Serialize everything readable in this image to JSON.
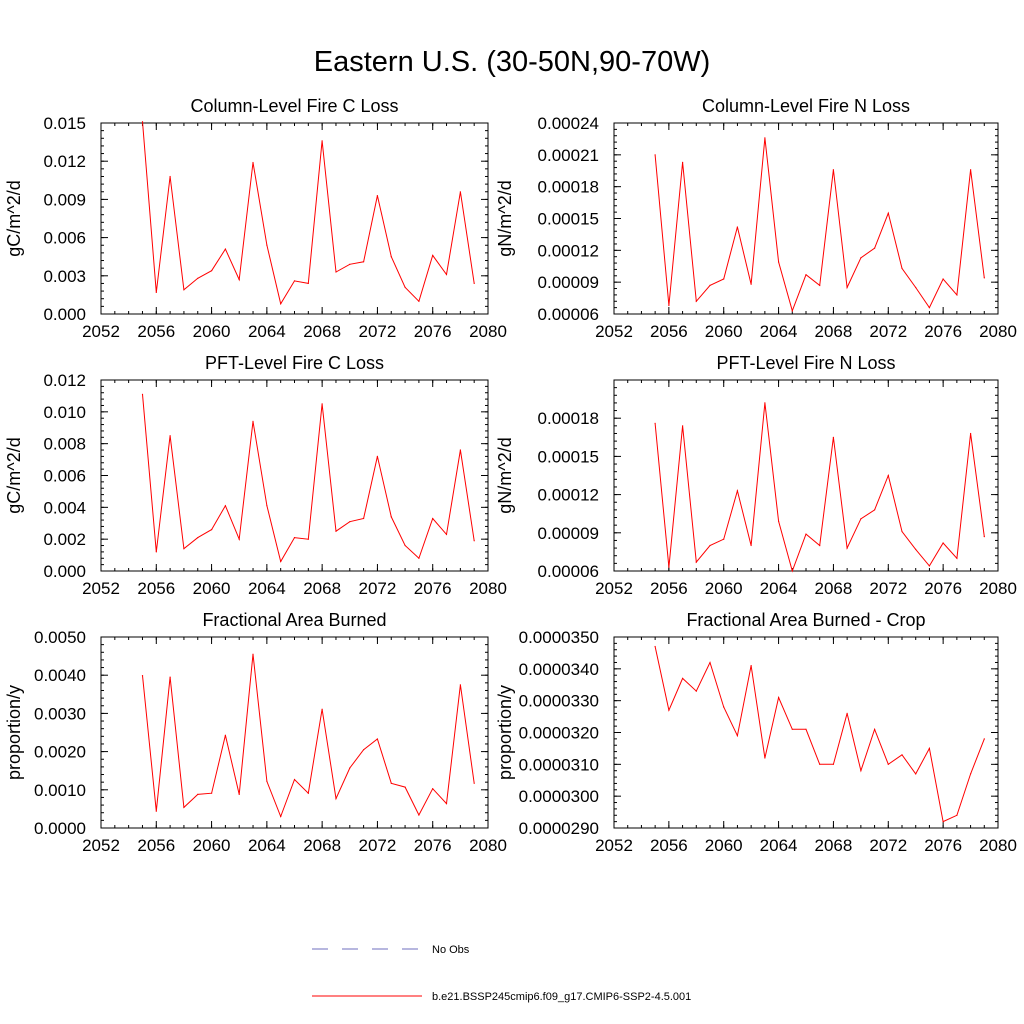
{
  "figure": {
    "title": "Eastern U.S. (30-50N,90-70W)"
  },
  "legend": {
    "items": [
      {
        "label": "No Obs",
        "color": "#6f6fbf",
        "dash": true
      },
      {
        "label": "b.e21.BSSP245cmip6.f09_g17.CMIP6-SSP2-4.5.001",
        "color": "#ff0000",
        "dash": false
      }
    ]
  },
  "chart_data": [
    {
      "type": "line",
      "title": "Column-Level Fire C Loss",
      "ylabel": "gC/m^2/d",
      "xlim": [
        2052,
        2080
      ],
      "x_ticks": [
        "2052",
        "2056",
        "2060",
        "2064",
        "2068",
        "2072",
        "2076",
        "2080"
      ],
      "ylim": [
        0.0,
        0.015
      ],
      "y_ticks": [
        "0.000",
        "0.003",
        "0.006",
        "0.009",
        "0.012",
        "0.015"
      ],
      "x": [
        2055,
        2056,
        2057,
        2058,
        2059,
        2060,
        2061,
        2062,
        2063,
        2064,
        2065,
        2066,
        2067,
        2068,
        2069,
        2070,
        2071,
        2072,
        2073,
        2074,
        2075,
        2076,
        2077,
        2078,
        2079
      ],
      "series": [
        {
          "color": "#ff0000",
          "values": [
            0.0151,
            0.0017,
            0.0108,
            0.0019,
            0.0028,
            0.0034,
            0.0051,
            0.0027,
            0.0119,
            0.0054,
            0.0008,
            0.0026,
            0.0024,
            0.0136,
            0.0033,
            0.0039,
            0.0041,
            0.0093,
            0.0045,
            0.0021,
            0.001,
            0.0046,
            0.0031,
            0.0096,
            0.0024
          ]
        }
      ]
    },
    {
      "type": "line",
      "title": "Column-Level Fire N Loss",
      "ylabel": "gN/m^2/d",
      "xlim": [
        2052,
        2080
      ],
      "x_ticks": [
        "2052",
        "2056",
        "2060",
        "2064",
        "2068",
        "2072",
        "2076",
        "2080"
      ],
      "ylim": [
        6e-05,
        0.00024
      ],
      "y_ticks": [
        "0.00006",
        "0.00009",
        "0.00012",
        "0.00015",
        "0.00018",
        "0.00021",
        "0.00024"
      ],
      "x": [
        2055,
        2056,
        2057,
        2058,
        2059,
        2060,
        2061,
        2062,
        2063,
        2064,
        2065,
        2066,
        2067,
        2068,
        2069,
        2070,
        2071,
        2072,
        2073,
        2074,
        2075,
        2076,
        2077,
        2078,
        2079
      ],
      "series": [
        {
          "color": "#ff0000",
          "values": [
            0.00021,
            6.8e-05,
            0.000203,
            7.2e-05,
            8.7e-05,
            9.3e-05,
            0.000142,
            8.8e-05,
            0.000226,
            0.000109,
            6.3e-05,
            9.7e-05,
            8.7e-05,
            0.000196,
            8.5e-05,
            0.000113,
            0.000122,
            0.000155,
            0.000103,
            8.5e-05,
            6.6e-05,
            9.3e-05,
            7.8e-05,
            0.000196,
            9.4e-05
          ]
        }
      ]
    },
    {
      "type": "line",
      "title": "PFT-Level Fire C Loss",
      "ylabel": "gC/m^2/d",
      "xlim": [
        2052,
        2080
      ],
      "x_ticks": [
        "2052",
        "2056",
        "2060",
        "2064",
        "2068",
        "2072",
        "2076",
        "2080"
      ],
      "ylim": [
        0.0,
        0.012
      ],
      "y_ticks": [
        "0.000",
        "0.002",
        "0.004",
        "0.006",
        "0.008",
        "0.010",
        "0.012"
      ],
      "x": [
        2055,
        2056,
        2057,
        2058,
        2059,
        2060,
        2061,
        2062,
        2063,
        2064,
        2065,
        2066,
        2067,
        2068,
        2069,
        2070,
        2071,
        2072,
        2073,
        2074,
        2075,
        2076,
        2077,
        2078,
        2079
      ],
      "series": [
        {
          "color": "#ff0000",
          "values": [
            0.0111,
            0.0012,
            0.0085,
            0.0014,
            0.0021,
            0.0026,
            0.0041,
            0.002,
            0.0094,
            0.0041,
            0.0006,
            0.0021,
            0.002,
            0.0105,
            0.0025,
            0.0031,
            0.0033,
            0.0072,
            0.0034,
            0.0016,
            0.0008,
            0.0033,
            0.0023,
            0.0076,
            0.0019
          ]
        }
      ]
    },
    {
      "type": "line",
      "title": "PFT-Level Fire N Loss",
      "ylabel": "gN/m^2/d",
      "xlim": [
        2052,
        2080
      ],
      "x_ticks": [
        "2052",
        "2056",
        "2060",
        "2064",
        "2068",
        "2072",
        "2076",
        "2080"
      ],
      "ylim": [
        6e-05,
        0.00021
      ],
      "y_ticks": [
        "0.00006",
        "0.00009",
        "0.00012",
        "0.00015",
        "0.00018"
      ],
      "x": [
        2055,
        2056,
        2057,
        2058,
        2059,
        2060,
        2061,
        2062,
        2063,
        2064,
        2065,
        2066,
        2067,
        2068,
        2069,
        2070,
        2071,
        2072,
        2073,
        2074,
        2075,
        2076,
        2077,
        2078,
        2079
      ],
      "series": [
        {
          "color": "#ff0000",
          "values": [
            0.000176,
            6.3e-05,
            0.000174,
            6.7e-05,
            8e-05,
            8.5e-05,
            0.000123,
            8e-05,
            0.000192,
            9.9e-05,
            6e-05,
            8.9e-05,
            8e-05,
            0.000165,
            7.8e-05,
            0.000101,
            0.000108,
            0.000135,
            9.1e-05,
            7.7e-05,
            6.4e-05,
            8.2e-05,
            7e-05,
            0.000168,
            8.7e-05
          ]
        }
      ]
    },
    {
      "type": "line",
      "title": "Fractional Area Burned",
      "ylabel": "proportion/y",
      "xlim": [
        2052,
        2080
      ],
      "x_ticks": [
        "2052",
        "2056",
        "2060",
        "2064",
        "2068",
        "2072",
        "2076",
        "2080"
      ],
      "ylim": [
        0.0,
        0.005
      ],
      "y_ticks": [
        "0.0000",
        "0.0010",
        "0.0020",
        "0.0030",
        "0.0040",
        "0.0050"
      ],
      "x": [
        2055,
        2056,
        2057,
        2058,
        2059,
        2060,
        2061,
        2062,
        2063,
        2064,
        2065,
        2066,
        2067,
        2068,
        2069,
        2070,
        2071,
        2072,
        2073,
        2074,
        2075,
        2076,
        2077,
        2078,
        2079
      ],
      "series": [
        {
          "color": "#ff0000",
          "values": [
            0.00399,
            0.00044,
            0.00395,
            0.00054,
            0.00088,
            0.00091,
            0.00243,
            0.00088,
            0.00455,
            0.00122,
            0.0003,
            0.00127,
            0.00091,
            0.00311,
            0.00077,
            0.00157,
            0.00205,
            0.00233,
            0.00117,
            0.00107,
            0.00034,
            0.00103,
            0.00064,
            0.00375,
            0.00117
          ]
        }
      ]
    },
    {
      "type": "line",
      "title": "Fractional Area Burned - Crop",
      "ylabel": "proportion/y",
      "xlim": [
        2052,
        2080
      ],
      "x_ticks": [
        "2052",
        "2056",
        "2060",
        "2064",
        "2068",
        "2072",
        "2076",
        "2080"
      ],
      "ylim": [
        2.9e-05,
        3.5e-05
      ],
      "y_ticks": [
        "0.0000290",
        "0.0000300",
        "0.0000310",
        "0.0000320",
        "0.0000330",
        "0.0000340",
        "0.0000350"
      ],
      "x": [
        2055,
        2056,
        2057,
        2058,
        2059,
        2060,
        2061,
        2062,
        2063,
        2064,
        2065,
        2066,
        2067,
        2068,
        2069,
        2070,
        2071,
        2072,
        2073,
        2074,
        2075,
        2076,
        2077,
        2078,
        2079
      ],
      "series": [
        {
          "color": "#ff0000",
          "values": [
            3.47e-05,
            3.27e-05,
            3.37e-05,
            3.33e-05,
            3.42e-05,
            3.28e-05,
            3.19e-05,
            3.41e-05,
            3.12e-05,
            3.31e-05,
            3.21e-05,
            3.21e-05,
            3.1e-05,
            3.1e-05,
            3.26e-05,
            3.08e-05,
            3.21e-05,
            3.1e-05,
            3.13e-05,
            3.07e-05,
            3.15e-05,
            2.92e-05,
            2.94e-05,
            3.07e-05,
            3.18e-05
          ]
        }
      ]
    }
  ]
}
